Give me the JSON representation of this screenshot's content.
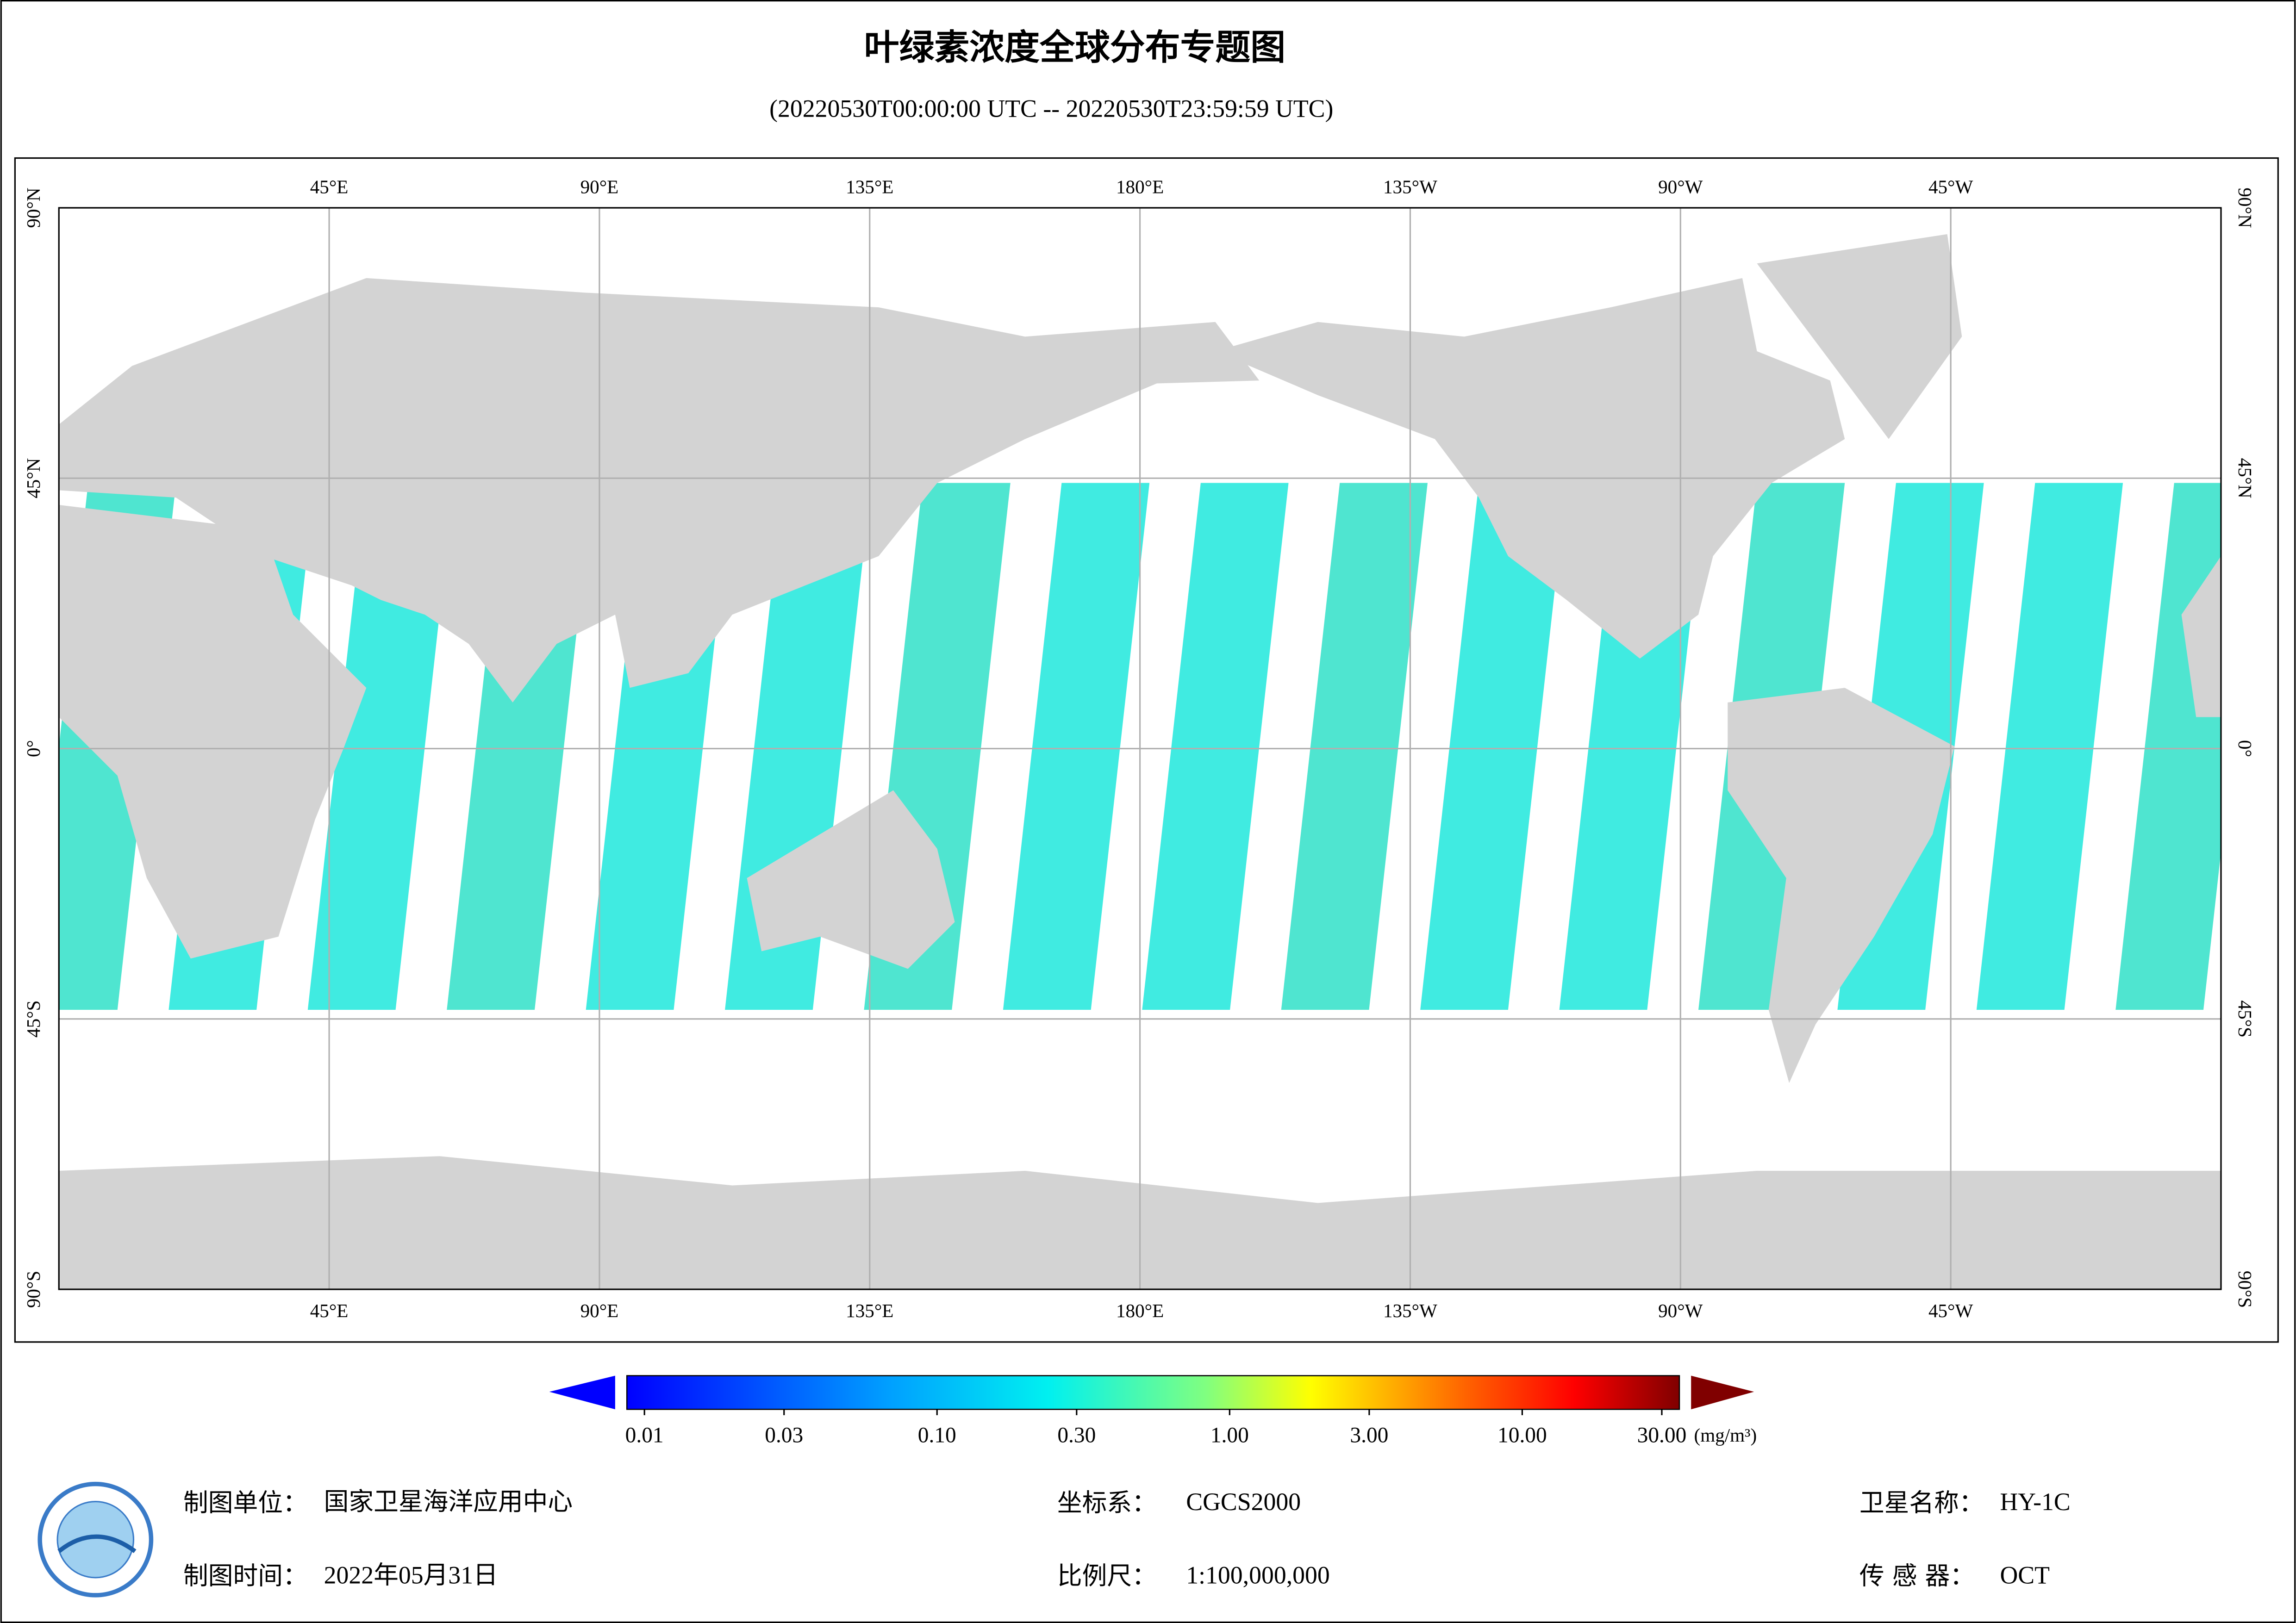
{
  "chart_data": {
    "type": "map",
    "title": "叶绿素浓度全球分布专题图",
    "subtitle": "(20220530T00:00:00 UTC -- 20220530T23:59:59 UTC)",
    "xlim": [
      0,
      360
    ],
    "ylim": [
      -90,
      90
    ],
    "xticks": [
      {
        "value": 45,
        "label": "45°E"
      },
      {
        "value": 90,
        "label": "90°E"
      },
      {
        "value": 135,
        "label": "135°E"
      },
      {
        "value": 180,
        "label": "180°E"
      },
      {
        "value": -135,
        "label": "135°W"
      },
      {
        "value": -90,
        "label": "90°W"
      },
      {
        "value": -45,
        "label": "45°W"
      }
    ],
    "yticks": [
      {
        "value": 90,
        "label": "90°N"
      },
      {
        "value": 45,
        "label": "45°N"
      },
      {
        "value": 0,
        "label": "0°"
      },
      {
        "value": -45,
        "label": "45°S"
      },
      {
        "value": -90,
        "label": "90°S"
      }
    ],
    "grid": true,
    "colorbar": {
      "lim": [
        0.01,
        30
      ],
      "log": true,
      "unit": "(mg/m³)",
      "ticks": [
        {
          "value": 0.01,
          "label": "0.01"
        },
        {
          "value": 0.03,
          "label": "0.03"
        },
        {
          "value": 0.1,
          "label": "0.10"
        },
        {
          "value": 0.3,
          "label": "0.30"
        },
        {
          "value": 1,
          "label": "1.00"
        },
        {
          "value": 3,
          "label": "3.00"
        },
        {
          "value": 10,
          "label": "10.00"
        },
        {
          "value": 30,
          "label": "30.00"
        }
      ]
    },
    "footer": [
      {
        "label": "制图单位：",
        "value": "国家卫星海洋应用中心"
      },
      {
        "label": "坐标系：",
        "value": "CGCS2000"
      },
      {
        "label": "卫星名称：",
        "value": "HY-1C"
      },
      {
        "label": "制图时间：",
        "value": "2022年05月31日"
      },
      {
        "label": "比例尺：",
        "value": "1:100,000,000"
      },
      {
        "label": "传 感 器：",
        "value": "OCT"
      }
    ]
  }
}
